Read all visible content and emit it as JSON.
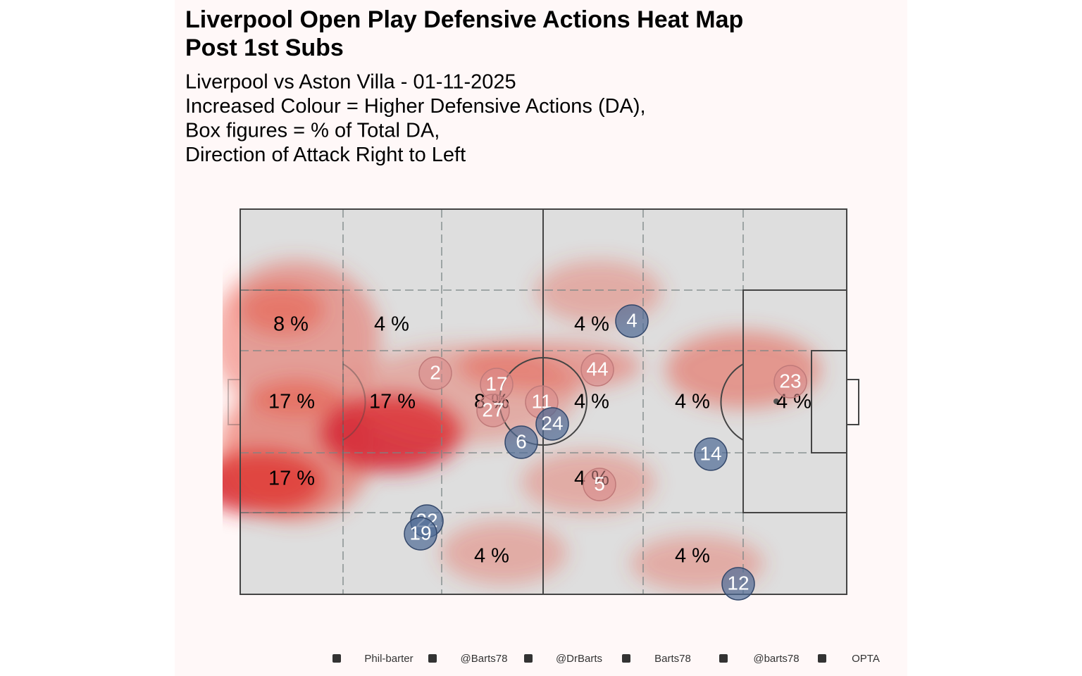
{
  "chart_data": {
    "type": "pitch-heatmap",
    "title": [
      "Liverpool Open Play Defensive Actions Heat Map",
      "Post 1st Subs"
    ],
    "subtitle": [
      "Liverpool vs Aston Villa - 01-11-2025",
      "Increased Colour = Higher Defensive Actions (DA),",
      "Box figures = % of Total DA,",
      "Direction of Attack Right to Left"
    ],
    "values": [
      8,
      4,
      4,
      17,
      17,
      8,
      4,
      4,
      4,
      17,
      4,
      4,
      4
    ],
    "value_labels": [
      "8 %",
      "4 %",
      "4 %",
      "17 %",
      "17 %",
      "8 %",
      "4 %",
      "4 %",
      "4 %",
      "17 %",
      "4 %",
      "4 %",
      "4 %"
    ],
    "player_labels": [
      "4",
      "2",
      "44",
      "17",
      "23",
      "27",
      "11",
      "24",
      "6",
      "14",
      "5",
      "22",
      "19",
      "12"
    ],
    "credits": [
      "Phil-barter",
      "@Barts78",
      "@DrBarts",
      "Barts78",
      "@barts78",
      "OPTA"
    ]
  }
}
